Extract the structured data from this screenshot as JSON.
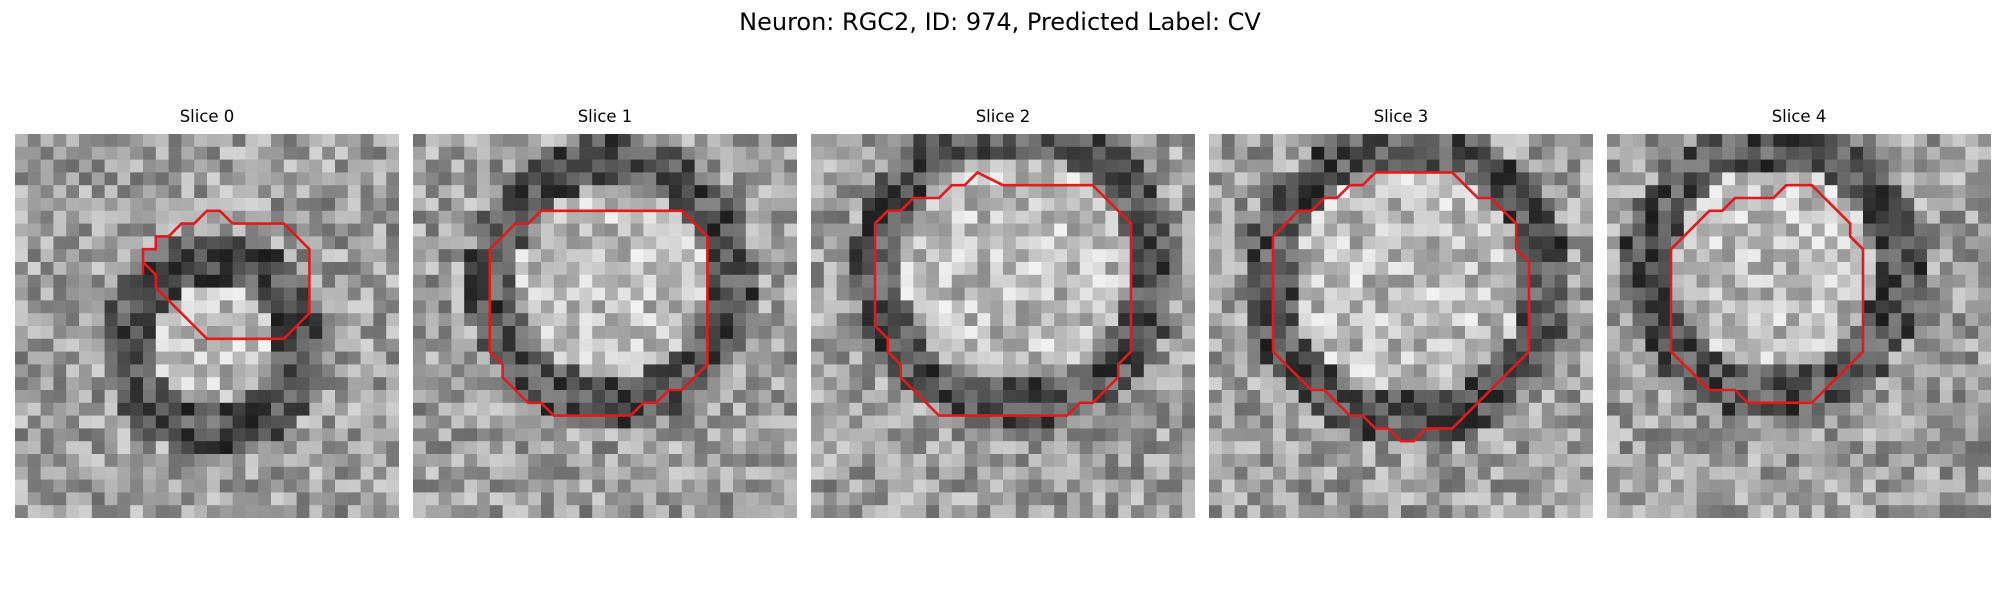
{
  "figure": {
    "title": "Neuron: RGC2, ID: 974, Predicted Label: CV"
  },
  "panels": [
    {
      "title": "Slice 0",
      "contour": [
        [
          17,
          7
        ],
        [
          21,
          7
        ],
        [
          22,
          8
        ],
        [
          23,
          9
        ],
        [
          23,
          14
        ],
        [
          22,
          15
        ],
        [
          21,
          16
        ],
        [
          15,
          16
        ],
        [
          14,
          15
        ],
        [
          13,
          14
        ],
        [
          12,
          13
        ],
        [
          11,
          12
        ],
        [
          11,
          11
        ],
        [
          10,
          10
        ],
        [
          10,
          11
        ],
        [
          10,
          9
        ],
        [
          11,
          9
        ],
        [
          11,
          8
        ],
        [
          12,
          8
        ],
        [
          13,
          7
        ],
        [
          14,
          7
        ],
        [
          15,
          6
        ],
        [
          16,
          6
        ],
        [
          17,
          7
        ]
      ]
    },
    {
      "title": "Slice 1",
      "contour": [
        [
          12,
          2
        ],
        [
          21,
          2
        ],
        [
          22,
          3
        ],
        [
          23,
          4
        ],
        [
          23,
          14
        ],
        [
          22,
          15
        ],
        [
          21,
          16
        ],
        [
          20,
          16
        ],
        [
          19,
          17
        ],
        [
          18,
          17
        ],
        [
          17,
          18
        ],
        [
          11,
          18
        ],
        [
          10,
          17
        ],
        [
          9,
          17
        ],
        [
          8,
          16
        ],
        [
          7,
          15
        ],
        [
          7,
          14
        ],
        [
          6,
          13
        ],
        [
          6,
          5
        ],
        [
          7,
          4
        ],
        [
          8,
          3
        ],
        [
          9,
          3
        ],
        [
          10,
          2
        ],
        [
          12,
          2
        ]
      ]
    },
    {
      "title": "Slice 2",
      "contour": [
        [
          15,
          0
        ],
        [
          22,
          0
        ],
        [
          23,
          1
        ],
        [
          24,
          2
        ],
        [
          25,
          3
        ],
        [
          25,
          13
        ],
        [
          24,
          14
        ],
        [
          24,
          15
        ],
        [
          23,
          16
        ],
        [
          22,
          17
        ],
        [
          21,
          17
        ],
        [
          20,
          18
        ],
        [
          10,
          18
        ],
        [
          9,
          17
        ],
        [
          8,
          16
        ],
        [
          7,
          15
        ],
        [
          7,
          14
        ],
        [
          6,
          13
        ],
        [
          6,
          12
        ],
        [
          5,
          11
        ],
        [
          5,
          3
        ],
        [
          6,
          2
        ],
        [
          7,
          2
        ],
        [
          8,
          1
        ],
        [
          10,
          1
        ],
        [
          11,
          0
        ],
        [
          12,
          0
        ],
        [
          13,
          -1
        ],
        [
          15,
          0
        ]
      ]
    },
    {
      "title": "Slice 3",
      "contour": [
        [
          16,
          -1
        ],
        [
          19,
          -1
        ],
        [
          20,
          0
        ],
        [
          21,
          1
        ],
        [
          22,
          1
        ],
        [
          23,
          2
        ],
        [
          24,
          3
        ],
        [
          24,
          5
        ],
        [
          25,
          6
        ],
        [
          25,
          13
        ],
        [
          24,
          14
        ],
        [
          23,
          15
        ],
        [
          22,
          16
        ],
        [
          21,
          17
        ],
        [
          20,
          18
        ],
        [
          19,
          19
        ],
        [
          17,
          19
        ],
        [
          16,
          20
        ],
        [
          15,
          20
        ],
        [
          14,
          19
        ],
        [
          13,
          19
        ],
        [
          12,
          18
        ],
        [
          11,
          18
        ],
        [
          10,
          17
        ],
        [
          9,
          16
        ],
        [
          8,
          16
        ],
        [
          7,
          15
        ],
        [
          6,
          14
        ],
        [
          5,
          13
        ],
        [
          5,
          4
        ],
        [
          6,
          3
        ],
        [
          7,
          2
        ],
        [
          8,
          2
        ],
        [
          9,
          1
        ],
        [
          10,
          1
        ],
        [
          11,
          0
        ],
        [
          12,
          0
        ],
        [
          13,
          -1
        ],
        [
          16,
          -1
        ]
      ]
    },
    {
      "title": "Slice 4",
      "contour": [
        [
          15,
          0
        ],
        [
          16,
          0
        ],
        [
          17,
          1
        ],
        [
          18,
          2
        ],
        [
          19,
          3
        ],
        [
          19,
          4
        ],
        [
          20,
          5
        ],
        [
          20,
          13
        ],
        [
          19,
          14
        ],
        [
          18,
          15
        ],
        [
          17,
          16
        ],
        [
          16,
          17
        ],
        [
          11,
          17
        ],
        [
          10,
          16
        ],
        [
          8,
          16
        ],
        [
          7,
          15
        ],
        [
          6,
          14
        ],
        [
          5,
          13
        ],
        [
          5,
          5
        ],
        [
          6,
          4
        ],
        [
          7,
          3
        ],
        [
          8,
          2
        ],
        [
          9,
          2
        ],
        [
          10,
          1
        ],
        [
          13,
          1
        ],
        [
          14,
          0
        ],
        [
          15,
          0
        ]
      ]
    }
  ],
  "colors": {
    "contour": "#e31a1c"
  }
}
